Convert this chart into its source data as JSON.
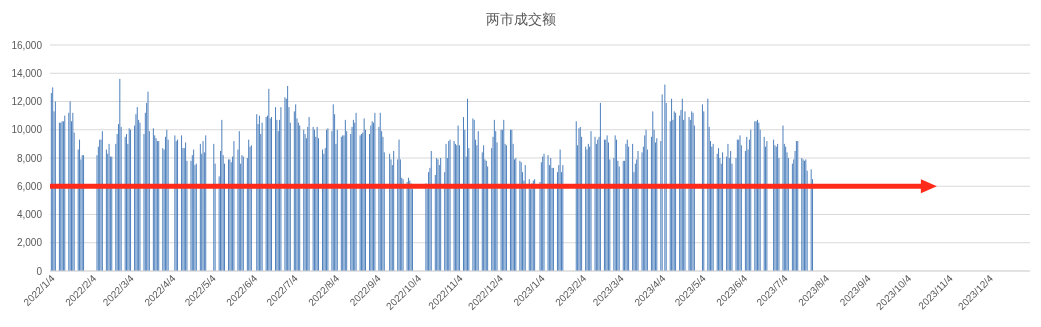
{
  "chart_data": {
    "type": "bar",
    "title": "两市成交额",
    "grid": "y",
    "xlim": [
      "2022-01-03",
      "2024-01-03"
    ],
    "xticks": [
      {
        "value": "2022-01-04",
        "label": "2022/1/4"
      },
      {
        "value": "2022-02-04",
        "label": "2022/2/4"
      },
      {
        "value": "2022-03-04",
        "label": "2022/3/4"
      },
      {
        "value": "2022-04-04",
        "label": "2022/4/4"
      },
      {
        "value": "2022-05-04",
        "label": "2022/5/4"
      },
      {
        "value": "2022-06-04",
        "label": "2022/6/4"
      },
      {
        "value": "2022-07-04",
        "label": "2022/7/4"
      },
      {
        "value": "2022-08-04",
        "label": "2022/8/4"
      },
      {
        "value": "2022-09-04",
        "label": "2022/9/4"
      },
      {
        "value": "2022-10-04",
        "label": "2022/10/4"
      },
      {
        "value": "2022-11-04",
        "label": "2022/11/4"
      },
      {
        "value": "2022-12-04",
        "label": "2022/12/4"
      },
      {
        "value": "2023-01-04",
        "label": "2023/1/4"
      },
      {
        "value": "2023-02-04",
        "label": "2023/2/4"
      },
      {
        "value": "2023-03-04",
        "label": "2023/3/4"
      },
      {
        "value": "2023-04-04",
        "label": "2023/4/4"
      },
      {
        "value": "2023-05-04",
        "label": "2023/5/4"
      },
      {
        "value": "2023-06-04",
        "label": "2023/6/4"
      },
      {
        "value": "2023-07-04",
        "label": "2023/7/4"
      },
      {
        "value": "2023-08-04",
        "label": "2023/8/4"
      },
      {
        "value": "2023-09-04",
        "label": "2023/9/4"
      },
      {
        "value": "2023-10-04",
        "label": "2023/10/4"
      },
      {
        "value": "2023-11-04",
        "label": "2023/11/4"
      },
      {
        "value": "2023-12-04",
        "label": "2023/12/4"
      }
    ],
    "ylim": [
      0,
      16000
    ],
    "yticks": [
      0,
      {
        "value": 2000,
        "label": "2,000"
      },
      {
        "value": 4000,
        "label": "4,000"
      },
      {
        "value": 6000,
        "label": "6,000"
      },
      {
        "value": 8000,
        "label": "8,000"
      },
      {
        "value": 10000,
        "label": "10,000"
      },
      {
        "value": 12000,
        "label": "12,000"
      },
      {
        "value": 14000,
        "label": "14,000"
      },
      {
        "value": 16000,
        "label": "16,000"
      }
    ],
    "ref_lines": [
      {
        "axis": "y",
        "value": 6000,
        "color": "#ff2a1a"
      }
    ],
    "series": [
      {
        "color": "#4f81bd",
        "x": [
          "2022-01-04",
          "2022-01-05",
          "2022-01-06",
          "2022-01-07",
          "2022-01-10",
          "2022-01-11",
          "2022-01-12",
          "2022-01-13",
          "2022-01-14",
          "2022-01-17",
          "2022-01-18",
          "2022-01-19",
          "2022-01-20",
          "2022-01-21",
          "2022-01-24",
          "2022-01-25",
          "2022-01-26",
          "2022-01-27",
          "2022-01-28",
          "2022-02-07",
          "2022-02-08",
          "2022-02-09",
          "2022-02-10",
          "2022-02-11",
          "2022-02-14",
          "2022-02-15",
          "2022-02-16",
          "2022-02-17",
          "2022-02-18",
          "2022-02-21",
          "2022-02-22",
          "2022-02-23",
          "2022-02-24",
          "2022-02-25",
          "2022-02-28",
          "2022-03-01",
          "2022-03-02",
          "2022-03-03",
          "2022-03-04",
          "2022-03-07",
          "2022-03-08",
          "2022-03-09",
          "2022-03-10",
          "2022-03-11",
          "2022-03-14",
          "2022-03-15",
          "2022-03-16",
          "2022-03-17",
          "2022-03-18",
          "2022-03-21",
          "2022-03-22",
          "2022-03-23",
          "2022-03-24",
          "2022-03-25",
          "2022-03-28",
          "2022-03-29",
          "2022-03-30",
          "2022-03-31",
          "2022-04-01",
          "2022-04-06",
          "2022-04-07",
          "2022-04-08",
          "2022-04-11",
          "2022-04-12",
          "2022-04-13",
          "2022-04-14",
          "2022-04-15",
          "2022-04-18",
          "2022-04-19",
          "2022-04-20",
          "2022-04-21",
          "2022-04-22",
          "2022-04-25",
          "2022-04-26",
          "2022-04-27",
          "2022-04-28",
          "2022-04-29",
          "2022-05-05",
          "2022-05-06",
          "2022-05-09",
          "2022-05-10",
          "2022-05-11",
          "2022-05-12",
          "2022-05-13",
          "2022-05-16",
          "2022-05-17",
          "2022-05-18",
          "2022-05-19",
          "2022-05-20",
          "2022-05-23",
          "2022-05-24",
          "2022-05-25",
          "2022-05-26",
          "2022-05-27",
          "2022-05-30",
          "2022-05-31",
          "2022-06-01",
          "2022-06-02",
          "2022-06-06",
          "2022-06-07",
          "2022-06-08",
          "2022-06-09",
          "2022-06-10",
          "2022-06-13",
          "2022-06-14",
          "2022-06-15",
          "2022-06-16",
          "2022-06-17",
          "2022-06-20",
          "2022-06-21",
          "2022-06-22",
          "2022-06-23",
          "2022-06-24",
          "2022-06-27",
          "2022-06-28",
          "2022-06-29",
          "2022-06-30",
          "2022-07-01",
          "2022-07-04",
          "2022-07-05",
          "2022-07-06",
          "2022-07-07",
          "2022-07-08",
          "2022-07-11",
          "2022-07-12",
          "2022-07-13",
          "2022-07-14",
          "2022-07-15",
          "2022-07-18",
          "2022-07-19",
          "2022-07-20",
          "2022-07-21",
          "2022-07-22",
          "2022-07-25",
          "2022-07-26",
          "2022-07-27",
          "2022-07-28",
          "2022-07-29",
          "2022-08-01",
          "2022-08-02",
          "2022-08-03",
          "2022-08-04",
          "2022-08-05",
          "2022-08-08",
          "2022-08-09",
          "2022-08-10",
          "2022-08-11",
          "2022-08-12",
          "2022-08-15",
          "2022-08-16",
          "2022-08-17",
          "2022-08-18",
          "2022-08-19",
          "2022-08-22",
          "2022-08-23",
          "2022-08-24",
          "2022-08-25",
          "2022-08-26",
          "2022-08-29",
          "2022-08-30",
          "2022-08-31",
          "2022-09-01",
          "2022-09-02",
          "2022-09-05",
          "2022-09-06",
          "2022-09-07",
          "2022-09-08",
          "2022-09-09",
          "2022-09-13",
          "2022-09-14",
          "2022-09-15",
          "2022-09-16",
          "2022-09-19",
          "2022-09-20",
          "2022-09-21",
          "2022-09-22",
          "2022-09-23",
          "2022-09-26",
          "2022-09-27",
          "2022-09-28",
          "2022-09-29",
          "2022-09-30",
          "2022-10-10",
          "2022-10-11",
          "2022-10-12",
          "2022-10-13",
          "2022-10-14",
          "2022-10-17",
          "2022-10-18",
          "2022-10-19",
          "2022-10-20",
          "2022-10-21",
          "2022-10-24",
          "2022-10-25",
          "2022-10-26",
          "2022-10-27",
          "2022-10-28",
          "2022-10-31",
          "2022-11-01",
          "2022-11-02",
          "2022-11-03",
          "2022-11-04",
          "2022-11-07",
          "2022-11-08",
          "2022-11-09",
          "2022-11-10",
          "2022-11-11",
          "2022-11-14",
          "2022-11-15",
          "2022-11-16",
          "2022-11-17",
          "2022-11-18",
          "2022-11-21",
          "2022-11-22",
          "2022-11-23",
          "2022-11-24",
          "2022-11-25",
          "2022-11-28",
          "2022-11-29",
          "2022-11-30",
          "2022-12-01",
          "2022-12-02",
          "2022-12-05",
          "2022-12-06",
          "2022-12-07",
          "2022-12-08",
          "2022-12-09",
          "2022-12-12",
          "2022-12-13",
          "2022-12-14",
          "2022-12-15",
          "2022-12-16",
          "2022-12-19",
          "2022-12-20",
          "2022-12-21",
          "2022-12-22",
          "2022-12-23",
          "2022-12-26",
          "2022-12-27",
          "2022-12-28",
          "2022-12-29",
          "2022-12-30",
          "2023-01-03",
          "2023-01-04",
          "2023-01-05",
          "2023-01-06",
          "2023-01-09",
          "2023-01-10",
          "2023-01-11",
          "2023-01-12",
          "2023-01-13",
          "2023-01-16",
          "2023-01-17",
          "2023-01-18",
          "2023-01-19",
          "2023-01-20",
          "2023-01-30",
          "2023-01-31",
          "2023-02-01",
          "2023-02-02",
          "2023-02-03",
          "2023-02-06",
          "2023-02-07",
          "2023-02-08",
          "2023-02-09",
          "2023-02-10",
          "2023-02-13",
          "2023-02-14",
          "2023-02-15",
          "2023-02-16",
          "2023-02-17",
          "2023-02-20",
          "2023-02-21",
          "2023-02-22",
          "2023-02-23",
          "2023-02-24",
          "2023-02-27",
          "2023-02-28",
          "2023-03-01",
          "2023-03-02",
          "2023-03-03",
          "2023-03-06",
          "2023-03-07",
          "2023-03-08",
          "2023-03-09",
          "2023-03-10",
          "2023-03-13",
          "2023-03-14",
          "2023-03-15",
          "2023-03-16",
          "2023-03-17",
          "2023-03-20",
          "2023-03-21",
          "2023-03-22",
          "2023-03-23",
          "2023-03-24",
          "2023-03-27",
          "2023-03-28",
          "2023-03-29",
          "2023-03-30",
          "2023-03-31",
          "2023-04-03",
          "2023-04-04",
          "2023-04-06",
          "2023-04-07",
          "2023-04-10",
          "2023-04-11",
          "2023-04-12",
          "2023-04-13",
          "2023-04-14",
          "2023-04-17",
          "2023-04-18",
          "2023-04-19",
          "2023-04-20",
          "2023-04-21",
          "2023-04-24",
          "2023-04-25",
          "2023-04-26",
          "2023-04-27",
          "2023-04-28",
          "2023-05-04",
          "2023-05-05",
          "2023-05-08",
          "2023-05-09",
          "2023-05-10",
          "2023-05-11",
          "2023-05-12",
          "2023-05-15",
          "2023-05-16",
          "2023-05-17",
          "2023-05-18",
          "2023-05-19",
          "2023-05-22",
          "2023-05-23",
          "2023-05-24",
          "2023-05-25",
          "2023-05-26",
          "2023-05-29",
          "2023-05-30",
          "2023-05-31",
          "2023-06-01",
          "2023-06-02",
          "2023-06-05",
          "2023-06-06",
          "2023-06-07",
          "2023-06-08",
          "2023-06-09",
          "2023-06-12",
          "2023-06-13",
          "2023-06-14",
          "2023-06-15",
          "2023-06-16",
          "2023-06-19",
          "2023-06-20",
          "2023-06-21",
          "2023-06-26",
          "2023-06-27",
          "2023-06-28",
          "2023-06-29",
          "2023-06-30",
          "2023-07-03",
          "2023-07-04",
          "2023-07-05",
          "2023-07-06",
          "2023-07-07",
          "2023-07-10",
          "2023-07-11",
          "2023-07-12",
          "2023-07-13",
          "2023-07-14",
          "2023-07-17",
          "2023-07-18",
          "2023-07-19",
          "2023-07-20",
          "2023-07-21",
          "2023-07-24",
          "2023-07-25"
        ],
        "values": [
          12600,
          13000,
          11300,
          12000,
          10500,
          10500,
          10600,
          10600,
          11000,
          11200,
          12000,
          10600,
          11200,
          9800,
          8600,
          9300,
          7900,
          8200,
          8200,
          8200,
          8800,
          9300,
          9300,
          9900,
          8600,
          8300,
          9000,
          8100,
          8100,
          9000,
          9700,
          10400,
          13600,
          10200,
          9500,
          9700,
          9000,
          10100,
          10000,
          10300,
          11100,
          11600,
          10700,
          10500,
          9700,
          11200,
          11900,
          12700,
          9900,
          10100,
          9600,
          9400,
          9200,
          9200,
          8700,
          8600,
          9500,
          10000,
          9300,
          9600,
          9200,
          9300,
          9600,
          8700,
          8700,
          9100,
          7800,
          7800,
          8200,
          8600,
          7500,
          7600,
          9000,
          8300,
          9200,
          8400,
          9600,
          9000,
          7600,
          6700,
          8500,
          10700,
          8200,
          7600,
          7900,
          7900,
          7700,
          8100,
          9200,
          8600,
          9900,
          7600,
          8200,
          8100,
          8000,
          9300,
          8800,
          8900,
          11100,
          10400,
          11000,
          9700,
          10500,
          10900,
          11000,
          12900,
          10800,
          10900,
          11600,
          10700,
          9900,
          10700,
          11600,
          12300,
          12200,
          13100,
          11600,
          10500,
          11300,
          11800,
          10800,
          10500,
          10300,
          10000,
          9700,
          9400,
          10200,
          10900,
          10200,
          10000,
          9500,
          10200,
          9400,
          8600,
          8300,
          8700,
          10000,
          10100,
          9900,
          11800,
          11100,
          9000,
          10000,
          9500,
          9600,
          9600,
          10700,
          9900,
          9700,
          10200,
          10700,
          10500,
          11200,
          9600,
          9700,
          9800,
          10800,
          10000,
          9700,
          10300,
          10600,
          10500,
          11200,
          10200,
          11200,
          9900,
          9500,
          8400,
          8300,
          7900,
          7500,
          8500,
          7900,
          9300,
          7900,
          6600,
          6500,
          6300,
          6600,
          6400,
          6200,
          5800,
          6200,
          5800,
          7000,
          7300,
          8500,
          6800,
          8000,
          7900,
          7500,
          8000,
          7000,
          9000,
          8000,
          9200,
          9300,
          9200,
          9000,
          8900,
          10300,
          8900,
          10900,
          10000,
          8100,
          12200,
          8700,
          10800,
          10700,
          9300,
          8900,
          9900,
          8400,
          8900,
          7900,
          7800,
          7400,
          8700,
          9500,
          10700,
          9900,
          9100,
          10000,
          10000,
          10700,
          9000,
          8900,
          10000,
          10000,
          9000,
          7900,
          8000,
          7800,
          7700,
          7000,
          6400,
          7500,
          6500,
          5800,
          6200,
          6400,
          6500,
          6300,
          7700,
          8100,
          8300,
          8200,
          7500,
          8000,
          7300,
          7300,
          7000,
          7500,
          8600,
          7000,
          7500,
          10600,
          8900,
          10100,
          10200,
          9500,
          8800,
          8600,
          9000,
          8800,
          9900,
          9500,
          9000,
          9300,
          9500,
          11900,
          9300,
          9300,
          9600,
          9100,
          7900,
          8000,
          9600,
          9300,
          7800,
          7400,
          7800,
          7800,
          9000,
          9300,
          8800,
          9000,
          7000,
          7600,
          7900,
          8500,
          8400,
          8800,
          9600,
          10000,
          8600,
          9500,
          11300,
          10000,
          9100,
          9400,
          9200,
          12500,
          13200,
          11900,
          10600,
          12200,
          10700,
          11300,
          11200,
          11000,
          11400,
          12200,
          10700,
          11300,
          10900,
          10700,
          11300,
          11200,
          10300,
          11800,
          11300,
          12200,
          10200,
          9200,
          8800,
          9000,
          8300,
          8700,
          8000,
          7600,
          8400,
          8100,
          9000,
          8000,
          8500,
          7600,
          8000,
          9300,
          9300,
          9600,
          8900,
          8500,
          9500,
          8600,
          9300,
          10000,
          10600,
          10600,
          10700,
          10500,
          10000,
          9500,
          8800,
          9200,
          9300,
          8900,
          8800,
          9000,
          8000,
          10300,
          9000,
          8800,
          8400,
          8000,
          7600,
          7900,
          8500,
          9200,
          9200,
          8000,
          7900,
          7800,
          7900,
          7100,
          7200,
          6500
        ]
      }
    ]
  }
}
